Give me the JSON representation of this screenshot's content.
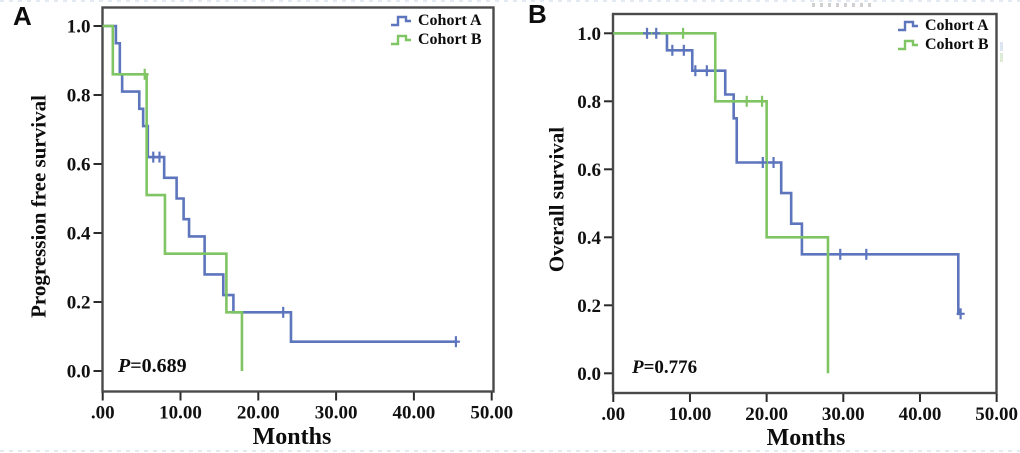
{
  "figure_type": "kaplan-meier-survival-curves",
  "colors": {
    "cohort_a": "#5d75bc",
    "cohort_b": "#80c563",
    "axis": "#4a4a4a",
    "text": "#0d0d0d"
  },
  "chart_data": [
    {
      "panel_label": "A",
      "type": "line",
      "subtype": "kaplan-meier-step",
      "title": "",
      "xlabel": "Months",
      "ylabel": "Progression free survival",
      "p_label": "P",
      "p_value": "=0.689",
      "xlim": [
        0,
        50
      ],
      "ylim": [
        0.0,
        1.0
      ],
      "grid": false,
      "legend_position": "top-right",
      "x_ticks": [
        0,
        10,
        20,
        30,
        40,
        50
      ],
      "x_tick_labels": [
        ".00",
        "10.00",
        "20.00",
        "30.00",
        "40.00",
        "50.00"
      ],
      "y_ticks": [
        0.0,
        0.2,
        0.4,
        0.6,
        0.8,
        1.0
      ],
      "y_tick_labels": [
        "0.0",
        "0.2",
        "0.4",
        "0.6",
        "0.8",
        "1.0"
      ],
      "series": [
        {
          "name": "Cohort A",
          "color": "#5d75bc",
          "steps": [
            [
              0,
              1.0
            ],
            [
              1.7,
              0.95
            ],
            [
              2.2,
              0.86
            ],
            [
              2.5,
              0.81
            ],
            [
              4.7,
              0.76
            ],
            [
              5.2,
              0.71
            ],
            [
              5.8,
              0.62
            ],
            [
              7.9,
              0.56
            ],
            [
              9.5,
              0.5
            ],
            [
              10.4,
              0.44
            ],
            [
              11.1,
              0.39
            ],
            [
              13.1,
              0.28
            ],
            [
              15.5,
              0.22
            ],
            [
              16.8,
              0.17
            ],
            [
              24.2,
              0.085
            ]
          ],
          "end_x": 45.4,
          "censors": [
            [
              6.5,
              0.62
            ],
            [
              7.3,
              0.62
            ],
            [
              23.2,
              0.17
            ],
            [
              45.4,
              0.085
            ]
          ]
        },
        {
          "name": "Cohort B",
          "color": "#80c563",
          "steps": [
            [
              0,
              1.0
            ],
            [
              1.3,
              0.86
            ],
            [
              5.65,
              0.51
            ],
            [
              8.0,
              0.34
            ],
            [
              15.9,
              0.17
            ],
            [
              17.9,
              0.0
            ]
          ],
          "end_x": 17.9,
          "censors": [
            [
              5.4,
              0.86
            ]
          ]
        }
      ]
    },
    {
      "panel_label": "B",
      "type": "line",
      "subtype": "kaplan-meier-step",
      "title": "",
      "xlabel": "Months",
      "ylabel": "Overall survival",
      "p_label": "P",
      "p_value": "=0.776",
      "xlim": [
        0,
        50
      ],
      "ylim": [
        0.0,
        1.0
      ],
      "grid": false,
      "legend_position": "top-right",
      "x_ticks": [
        0,
        10,
        20,
        30,
        40,
        50
      ],
      "x_tick_labels": [
        ".00",
        "10.00",
        "20.00",
        "30.00",
        "40.00",
        "50.00"
      ],
      "y_ticks": [
        0.0,
        0.2,
        0.4,
        0.6,
        0.8,
        1.0
      ],
      "y_tick_labels": [
        "0.0",
        "0.2",
        "0.4",
        "0.6",
        "0.8",
        "1.0"
      ],
      "series": [
        {
          "name": "Cohort A",
          "color": "#5d75bc",
          "steps": [
            [
              0,
              1.0
            ],
            [
              7.0,
              0.95
            ],
            [
              10.3,
              0.89
            ],
            [
              14.6,
              0.82
            ],
            [
              15.7,
              0.75
            ],
            [
              16.1,
              0.62
            ],
            [
              21.9,
              0.53
            ],
            [
              23.2,
              0.44
            ],
            [
              24.6,
              0.35
            ],
            [
              45.0,
              0.175
            ]
          ],
          "end_x": 45.3,
          "censors": [
            [
              4.4,
              1.0
            ],
            [
              5.6,
              1.0
            ],
            [
              7.7,
              0.95
            ],
            [
              9.2,
              0.95
            ],
            [
              10.7,
              0.89
            ],
            [
              12.2,
              0.89
            ],
            [
              19.5,
              0.62
            ],
            [
              20.9,
              0.62
            ],
            [
              29.6,
              0.35
            ],
            [
              33.0,
              0.35
            ],
            [
              45.3,
              0.175
            ]
          ]
        },
        {
          "name": "Cohort B",
          "color": "#80c563",
          "steps": [
            [
              0,
              1.0
            ],
            [
              13.3,
              0.8
            ],
            [
              20.0,
              0.4
            ],
            [
              28.0,
              0.0
            ]
          ],
          "end_x": 28.0,
          "censors": [
            [
              9.1,
              1.0
            ],
            [
              17.4,
              0.8
            ],
            [
              19.4,
              0.8
            ]
          ]
        }
      ]
    }
  ]
}
